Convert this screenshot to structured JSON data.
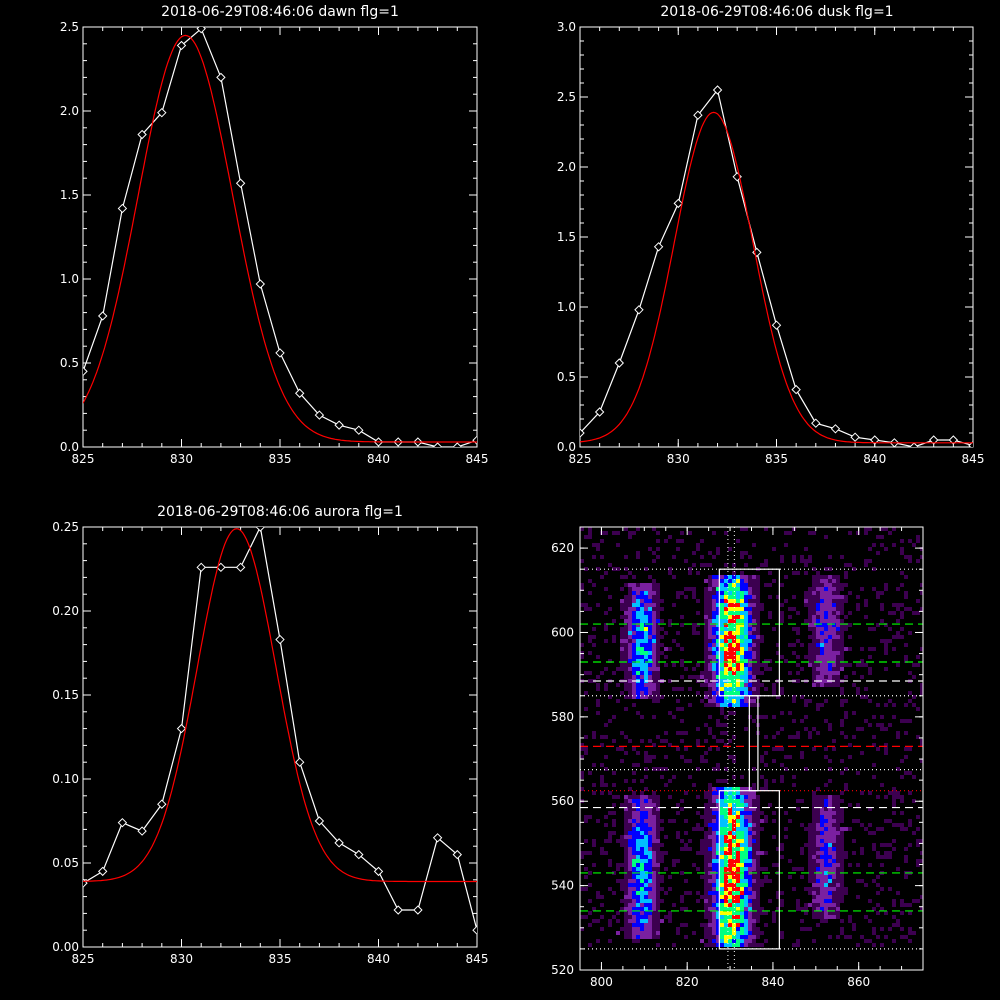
{
  "chart_data": [
    {
      "type": "line",
      "title": "2018-06-29T08:46:06 dawn flg=1",
      "xlim": [
        825,
        845
      ],
      "ylim": [
        0,
        2.5
      ],
      "x_ticks": [
        825,
        830,
        835,
        840,
        845
      ],
      "y_ticks": [
        0.0,
        0.5,
        1.0,
        1.5,
        2.0,
        2.5
      ],
      "y_tick_labels": [
        "0.0",
        "0.5",
        "1.0",
        "1.5",
        "2.0",
        "2.5"
      ],
      "series": [
        {
          "color": "#ffffff",
          "markers": "diamond",
          "x": [
            825,
            826,
            827,
            828,
            829,
            830,
            831,
            832,
            833,
            834,
            835,
            836,
            837,
            838,
            839,
            840,
            841,
            842,
            843,
            844,
            845
          ],
          "y": [
            0.45,
            0.78,
            1.42,
            1.86,
            1.99,
            2.39,
            2.49,
            2.2,
            1.57,
            0.97,
            0.56,
            0.32,
            0.19,
            0.13,
            0.1,
            0.03,
            0.03,
            0.03,
            0.0,
            0.0,
            0.04
          ]
        },
        {
          "color": "#ff0000",
          "type": "gaussian_fit",
          "amplitude": 2.42,
          "center": 830.2,
          "sigma": 2.4,
          "offset": 0.03
        }
      ]
    },
    {
      "type": "line",
      "title": "2018-06-29T08:46:06 dusk flg=1",
      "xlim": [
        825,
        845
      ],
      "ylim": [
        0,
        3.0
      ],
      "x_ticks": [
        825,
        830,
        835,
        840,
        845
      ],
      "y_ticks": [
        0.0,
        0.5,
        1.0,
        1.5,
        2.0,
        2.5,
        3.0
      ],
      "y_tick_labels": [
        "0.0",
        "0.5",
        "1.0",
        "1.5",
        "2.0",
        "2.5",
        "3.0"
      ],
      "series": [
        {
          "color": "#ffffff",
          "markers": "diamond",
          "x": [
            825,
            826,
            827,
            828,
            829,
            830,
            831,
            832,
            833,
            834,
            835,
            836,
            837,
            838,
            839,
            840,
            841,
            842,
            843,
            844,
            845
          ],
          "y": [
            0.1,
            0.25,
            0.6,
            0.98,
            1.43,
            1.74,
            2.37,
            2.55,
            1.93,
            1.39,
            0.87,
            0.41,
            0.17,
            0.13,
            0.07,
            0.05,
            0.03,
            0.0,
            0.05,
            0.05,
            0.01
          ]
        },
        {
          "color": "#ff0000",
          "type": "gaussian_fit",
          "amplitude": 2.36,
          "center": 831.8,
          "sigma": 2.0,
          "offset": 0.03
        }
      ]
    },
    {
      "type": "line",
      "title": "2018-06-29T08:46:06 aurora flg=1",
      "xlim": [
        825,
        845
      ],
      "ylim": [
        0,
        0.25
      ],
      "x_ticks": [
        825,
        830,
        835,
        840,
        845
      ],
      "y_ticks": [
        0.0,
        0.05,
        0.1,
        0.15,
        0.2,
        0.25
      ],
      "y_tick_labels": [
        "0.00",
        "0.05",
        "0.10",
        "0.15",
        "0.20",
        "0.25"
      ],
      "series": [
        {
          "color": "#ffffff",
          "markers": "diamond",
          "x": [
            825,
            826,
            827,
            828,
            829,
            830,
            831,
            832,
            833,
            834,
            835,
            836,
            837,
            838,
            839,
            840,
            841,
            842,
            843,
            844,
            845
          ],
          "y": [
            0.038,
            0.045,
            0.074,
            0.069,
            0.085,
            0.13,
            0.226,
            0.226,
            0.226,
            0.25,
            0.183,
            0.11,
            0.075,
            0.062,
            0.055,
            0.045,
            0.022,
            0.022,
            0.065,
            0.055,
            0.01
          ]
        },
        {
          "color": "#ff0000",
          "type": "gaussian_fit",
          "amplitude": 0.21,
          "center": 832.8,
          "sigma": 2.0,
          "offset": 0.039
        }
      ]
    },
    {
      "type": "heatmap",
      "xlim": [
        795,
        875
      ],
      "ylim": [
        520,
        625
      ],
      "x_ticks": [
        800,
        820,
        840,
        860
      ],
      "y_ticks": [
        520,
        540,
        560,
        580,
        600,
        620
      ],
      "colormap": [
        "#000000",
        "#3c0050",
        "#7a20a0",
        "#0000ff",
        "#00c0ff",
        "#00ff80",
        "#ffff00",
        "#ff0000"
      ],
      "emission_columns": [
        {
          "x_center": 809,
          "width": 4,
          "y_ranges": [
            [
              587,
              610
            ],
            [
              530,
              560
            ]
          ],
          "peak": 0.55
        },
        {
          "x_center": 830,
          "width": 5,
          "y_ranges": [
            [
              585,
              612
            ],
            [
              526,
              562
            ]
          ],
          "peak": 1.0
        },
        {
          "x_center": 852,
          "width": 4,
          "y_ranges": [
            [
              590,
              612
            ],
            [
              535,
              560
            ]
          ],
          "peak": 0.35
        }
      ],
      "boxes": [
        {
          "x": [
            827.5,
            841.5
          ],
          "y": [
            585,
            615
          ]
        },
        {
          "x": [
            834.5,
            836.5
          ],
          "y": [
            562.5,
            585
          ]
        },
        {
          "x": [
            827.5,
            841.5
          ],
          "y": [
            525,
            562.5
          ]
        }
      ],
      "horizontal_lines": [
        {
          "y": 615,
          "color": "#ffffff",
          "style": "dotted"
        },
        {
          "y": 602,
          "color": "#00ff00",
          "style": "dashed"
        },
        {
          "y": 593,
          "color": "#00ff00",
          "style": "dashed"
        },
        {
          "y": 588.5,
          "color": "#ffffff",
          "style": "dashed"
        },
        {
          "y": 585,
          "color": "#ffffff",
          "style": "dotted"
        },
        {
          "y": 573,
          "color": "#ff0000",
          "style": "dashed"
        },
        {
          "y": 567.5,
          "color": "#ffffff",
          "style": "dotted"
        },
        {
          "y": 562.5,
          "color": "#ff0000",
          "style": "dotted"
        },
        {
          "y": 558.5,
          "color": "#ffffff",
          "style": "dashed"
        },
        {
          "y": 543,
          "color": "#00ff00",
          "style": "dashed"
        },
        {
          "y": 534,
          "color": "#00ff00",
          "style": "dashed"
        },
        {
          "y": 525,
          "color": "#ffffff",
          "style": "dotted"
        }
      ],
      "vertical_lines": [
        {
          "x": 829.5,
          "color": "#ffffff",
          "style": "dotted"
        },
        {
          "x": 831,
          "color": "#ffffff",
          "style": "dotted"
        }
      ]
    }
  ]
}
